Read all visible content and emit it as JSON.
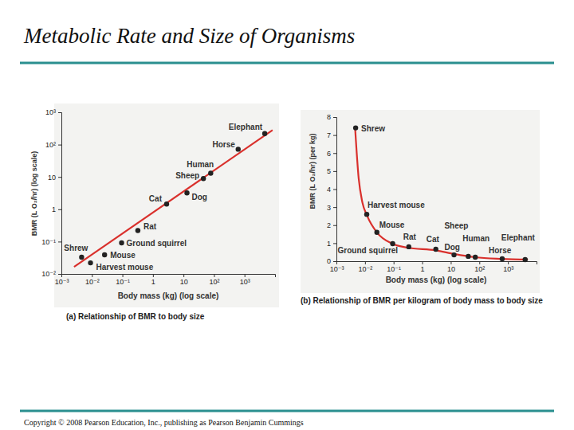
{
  "title": "Metabolic Rate and Size of Organisms",
  "footer": "Copyright © 2008 Pearson Education, Inc., publishing as Pearson Benjamin Cummings",
  "chart_data": [
    {
      "type": "scatter",
      "title": "(a) Relationship of BMR to body size",
      "x_label": "Body mass (kg) (log scale)",
      "y_label": "BMR (L O₂/hr) (log scale)",
      "log": true,
      "xlim": [
        0.001,
        10000
      ],
      "ylim": [
        0.01,
        1000
      ],
      "xticks": [
        {
          "value": 0.001,
          "label": "10⁻³"
        },
        {
          "value": 0.01,
          "label": "10⁻²"
        },
        {
          "value": 0.1,
          "label": "10⁻¹"
        },
        1,
        10,
        {
          "value": 100,
          "label": "10²"
        },
        {
          "value": 1000,
          "label": "10³"
        }
      ],
      "yticks": [
        {
          "value": 0.01,
          "label": "10⁻²"
        },
        {
          "value": 0.1,
          "label": "10⁻¹"
        },
        1,
        10,
        {
          "value": 100,
          "label": "10²"
        },
        {
          "value": 1000,
          "label": "10³"
        }
      ],
      "series": [
        {
          "type": "scatter",
          "color": "#222222",
          "marker": "circle",
          "labels": [
            "Shrew",
            "Harvest mouse",
            "Mouse",
            "Ground squirrel",
            "Rat",
            "Cat",
            "Dog",
            "Sheep",
            "Human",
            "Horse",
            "Elephant"
          ],
          "x": [
            0.0046,
            0.009,
            0.026,
            0.094,
            0.32,
            2.8,
            13,
            45,
            78,
            620,
            4600
          ],
          "values": [
            0.033,
            0.022,
            0.039,
            0.091,
            0.22,
            1.45,
            3.2,
            8.9,
            13,
            72,
            220
          ]
        },
        {
          "type": "line",
          "color": "#d9302c",
          "x": [
            0.0026,
            8300
          ],
          "values": [
            0.0166,
            280
          ]
        }
      ]
    },
    {
      "type": "scatter",
      "title": "(b) Relationship of BMR per kilogram of body mass to body size",
      "x_label": "Body mass (kg) (log scale)",
      "y_label": "BMR (L O₂/hr) (per kg)",
      "log": "x",
      "xlim": [
        0.001,
        10000
      ],
      "ylim": [
        0,
        8
      ],
      "xticks": [
        {
          "value": 0.001,
          "label": "10⁻³"
        },
        {
          "value": 0.01,
          "label": "10⁻²"
        },
        {
          "value": 0.1,
          "label": "10⁻¹"
        },
        1,
        10,
        {
          "value": 100,
          "label": "10²"
        },
        {
          "value": 1000,
          "label": "10³"
        }
      ],
      "yticks": [
        0,
        1,
        2,
        3,
        4,
        5,
        6,
        7,
        8
      ],
      "series": [
        {
          "type": "scatter",
          "color": "#222222",
          "marker": "circle",
          "labels": [
            "Shrew",
            "Harvest mouse",
            "Mouse",
            "Ground squirrel",
            "Rat",
            "Cat",
            "Dog",
            "Sheep",
            "Human",
            "Horse",
            "Elephant"
          ],
          "x": [
            0.0047,
            0.0115,
            0.026,
            0.093,
            0.34,
            3,
            13,
            41,
            72,
            630,
            4000
          ],
          "values": [
            7.4,
            2.6,
            1.6,
            0.97,
            0.8,
            0.66,
            0.35,
            0.27,
            0.22,
            0.13,
            0.09
          ]
        },
        {
          "type": "line",
          "color": "#d9302c",
          "x": [
            0.0045,
            0.006,
            0.008,
            0.012,
            0.026,
            0.09,
            0.3,
            3,
            13,
            70,
            600,
            5000
          ],
          "values": [
            7.4,
            4.6,
            3.3,
            2.5,
            1.6,
            0.97,
            0.75,
            0.6,
            0.4,
            0.22,
            0.13,
            0.09
          ]
        }
      ]
    }
  ]
}
